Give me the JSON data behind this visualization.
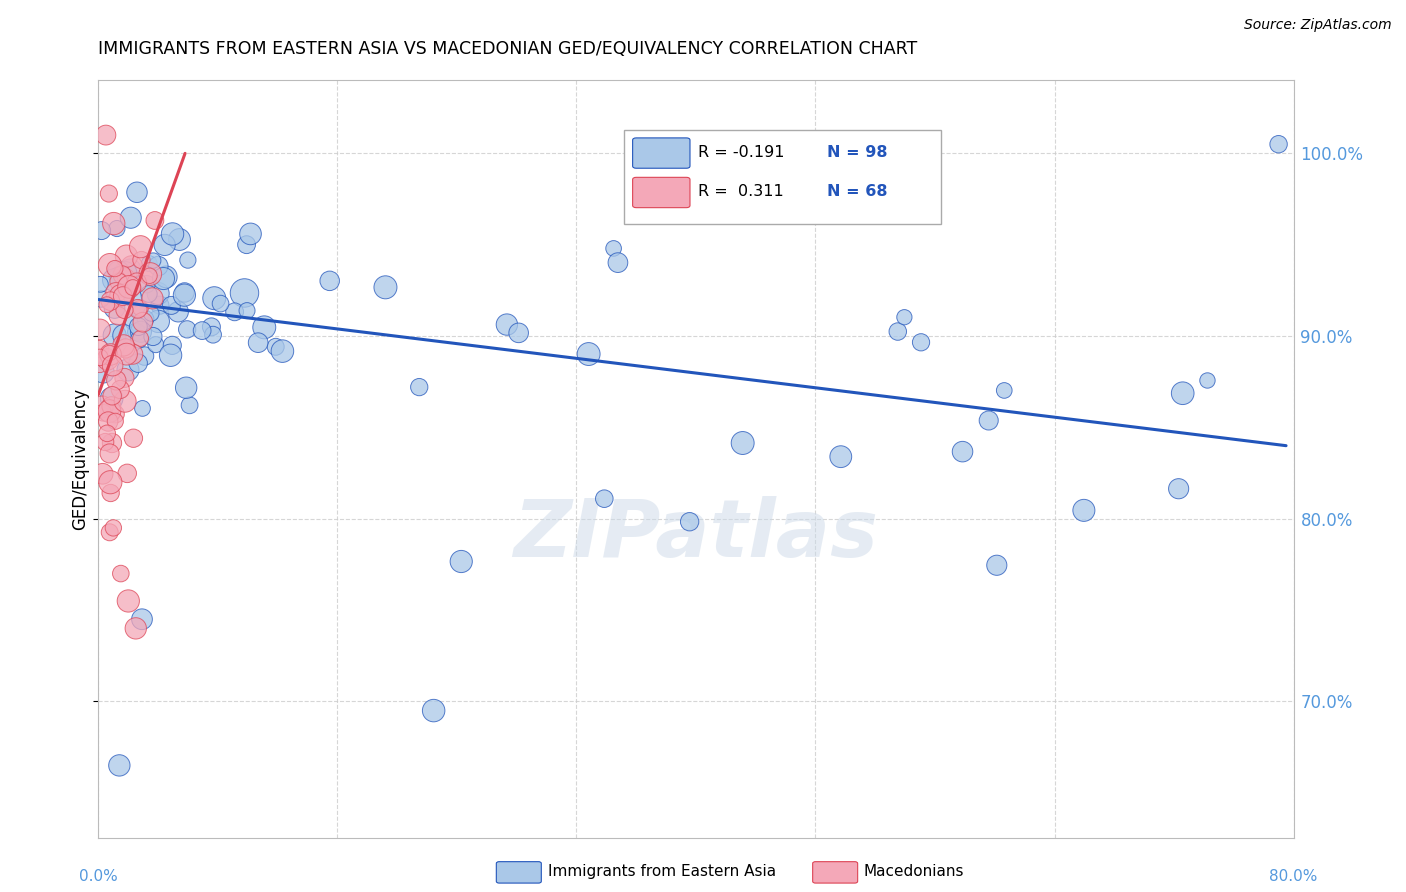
{
  "title": "IMMIGRANTS FROM EASTERN ASIA VS MACEDONIAN GED/EQUIVALENCY CORRELATION CHART",
  "source": "Source: ZipAtlas.com",
  "ylabel": "GED/Equivalency",
  "ytick_values": [
    0.7,
    0.8,
    0.9,
    1.0
  ],
  "ytick_labels": [
    "70.0%",
    "80.0%",
    "90.0%",
    "100.0%"
  ],
  "xlim": [
    0.0,
    0.8
  ],
  "ylim": [
    0.625,
    1.04
  ],
  "blue_color": "#aac8e8",
  "pink_color": "#f4a8b8",
  "line_blue_color": "#2255bb",
  "line_pink_color": "#dd4455",
  "watermark": "ZIPatlas",
  "blue_line_x": [
    0.0,
    0.795
  ],
  "blue_line_y": [
    0.92,
    0.84
  ],
  "pink_line_x": [
    0.0,
    0.058
  ],
  "pink_line_y": [
    0.868,
    1.0
  ],
  "legend_r_blue": "R = -0.191",
  "legend_n_blue": "N = 98",
  "legend_r_pink": "R =  0.311",
  "legend_n_pink": "N = 68",
  "grid_color": "#cccccc",
  "ytick_color": "#5599dd"
}
